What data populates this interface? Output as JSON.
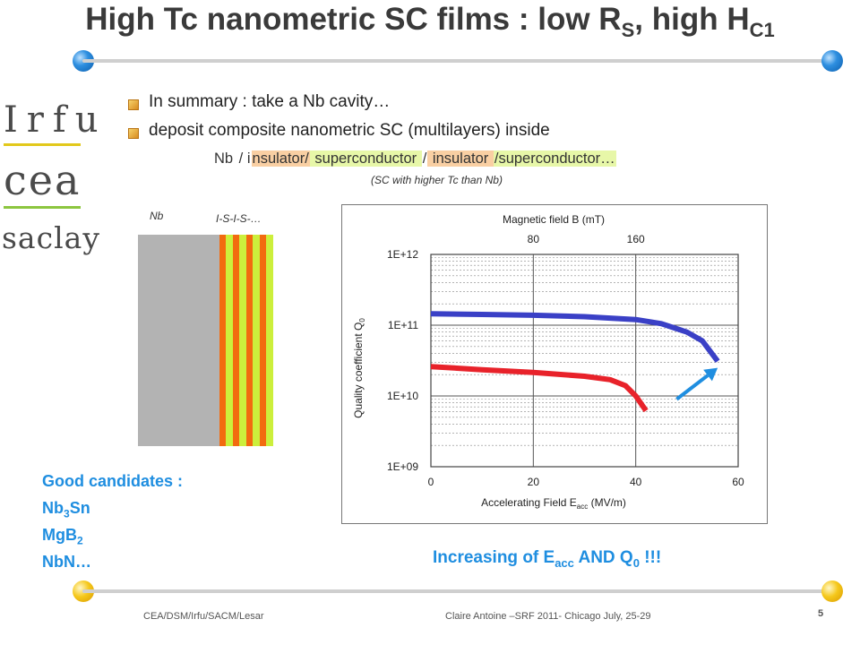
{
  "title": {
    "main": "High Tc nanometric SC films : low R",
    "sub1": "S",
    "mid": ", high H",
    "sub2": "C1"
  },
  "logos": {
    "irfu": "Irfu",
    "cea": "cea",
    "saclay": "saclay"
  },
  "bullets": [
    "In summary  : take a Nb cavity…",
    "deposit composite nanometric SC (multilayers) inside"
  ],
  "formula": {
    "nb": "Nb",
    "sep1": " / i",
    "insulator1": "nsulator/",
    "superconductor1": " superconductor ",
    "sep2": "/",
    "insulator2": " insulator ",
    "superconductor2": "/superconductor…"
  },
  "formula_note": "(SC with higher Tc than Nb)",
  "layer_diagram": {
    "nb_label": "Nb",
    "stack_label": "I-S-I-S-…",
    "colors": {
      "nb": "#b3b3b3",
      "insulator": "#f26b0f",
      "superconductor": "#ccef3c"
    }
  },
  "candidates": {
    "heading": "Good candidates :",
    "items": [
      {
        "base": "Nb",
        "sub": "3",
        "rest": "Sn"
      },
      {
        "base": "MgB",
        "sub": "2",
        "rest": ""
      },
      {
        "base": "NbN…",
        "sub": "",
        "rest": ""
      }
    ]
  },
  "increase_text": {
    "a": "Increasing of E",
    "sub1": "acc",
    "b": " AND Q",
    "sub2": "0",
    "c": " !!!"
  },
  "chart_data": {
    "type": "line",
    "title": "Magnetic field B (mT)",
    "top_axis_ticks": [
      {
        "label": "80",
        "x": 20
      },
      {
        "label": "160",
        "x": 40
      }
    ],
    "xlabel_main": "Accelerating Field E",
    "xlabel_sub": "acc",
    "xlabel_unit": " (MV/m)",
    "ylabel_main": "Quality coefficient Q",
    "ylabel_sub": "0",
    "xlim": [
      0,
      60
    ],
    "x_ticks": [
      0,
      20,
      40,
      60
    ],
    "ylim_log10": [
      9,
      12
    ],
    "y_tick_labels": [
      "1E+09",
      "1E+10",
      "1E+11",
      "1E+12"
    ],
    "y_scale": "log",
    "grid": true,
    "series": [
      {
        "color": "#e8222a",
        "points": [
          [
            0,
            26000000000.0
          ],
          [
            10,
            23500000000.0
          ],
          [
            20,
            21500000000.0
          ],
          [
            30,
            19000000000.0
          ],
          [
            35,
            17000000000.0
          ],
          [
            38,
            14000000000.0
          ],
          [
            40,
            10000000000.0
          ],
          [
            42,
            6200000000.0
          ]
        ]
      },
      {
        "color": "#3a40c6",
        "points": [
          [
            0,
            145000000000.0
          ],
          [
            10,
            142000000000.0
          ],
          [
            20,
            138000000000.0
          ],
          [
            30,
            132000000000.0
          ],
          [
            40,
            120000000000.0
          ],
          [
            45,
            105000000000.0
          ],
          [
            50,
            80000000000.0
          ],
          [
            53,
            60000000000.0
          ],
          [
            56,
            31000000000.0
          ]
        ]
      }
    ],
    "arrow": {
      "color": "#1f8ee0",
      "from": [
        48,
        9000000000.0
      ],
      "to": [
        56,
        25000000000.0
      ]
    }
  },
  "footer": {
    "left": "CEA/DSM/Irfu/SACM/Lesar",
    "center": "Claire Antoine –SRF 2011- Chicago July, 25-29",
    "page": "5"
  },
  "colors": {
    "accent_blue": "#1f8ee0",
    "title_gray": "#3a3a3a"
  }
}
